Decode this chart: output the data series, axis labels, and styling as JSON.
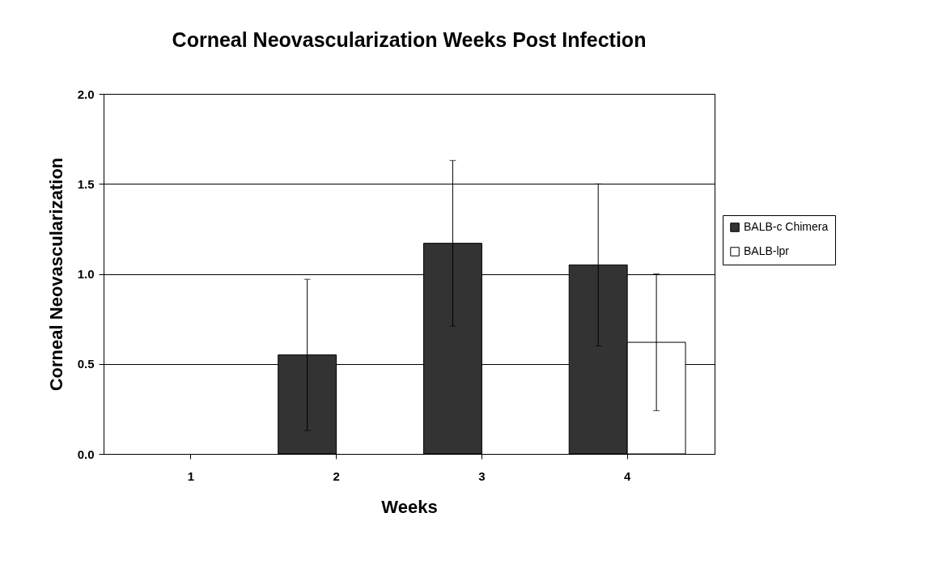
{
  "chart_data": {
    "type": "bar",
    "title": "Corneal Neovascularization Weeks Post Infection",
    "xlabel": "Weeks",
    "ylabel": "Corneal Neovascularization",
    "categories": [
      "1",
      "2",
      "3",
      "4"
    ],
    "series": [
      {
        "name": "BALB-c Chimera",
        "color": "#333333",
        "values": [
          0,
          0.55,
          1.17,
          1.05
        ],
        "errors": [
          null,
          0.42,
          0.46,
          0.45
        ]
      },
      {
        "name": "BALB-lpr",
        "color": "#ffffff",
        "values": [
          0,
          0,
          0,
          0.62
        ],
        "errors": [
          null,
          null,
          null,
          0.38
        ]
      }
    ],
    "ylim": [
      0,
      2
    ],
    "yticks": [
      {
        "value": 0,
        "label": "0.0"
      },
      {
        "value": 0.5,
        "label": "0.5"
      },
      {
        "value": 1,
        "label": "1.0"
      },
      {
        "value": 1.5,
        "label": "1.5"
      },
      {
        "value": 2,
        "label": "2.0"
      }
    ],
    "grid": "y",
    "legend": "right"
  }
}
